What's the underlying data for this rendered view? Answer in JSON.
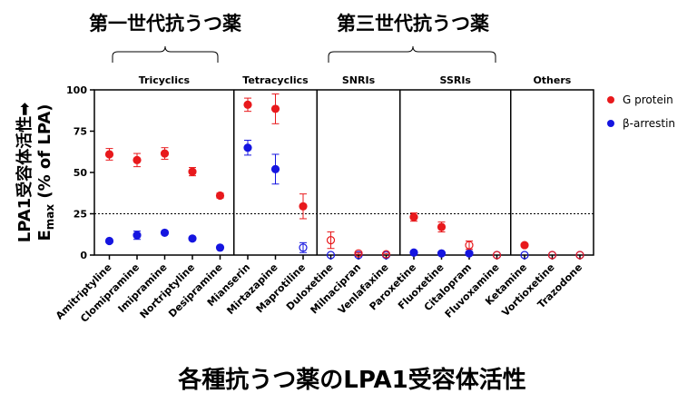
{
  "generation_labels": [
    "第一世代抗うつ薬",
    "第三世代抗うつ薬"
  ],
  "caption": "各種抗うつ薬のLPA1受容体活性",
  "ylabel": {
    "line1": "LPA1受容体活性➡",
    "line2_main": "E",
    "line2_sub": "max",
    "line2_rest": " (% of LPA)"
  },
  "colors": {
    "g_protein": "#e8191c",
    "beta_arrestin": "#1515e0"
  },
  "chart_data": {
    "type": "scatter",
    "categories": [
      "Amitriptyline",
      "Clomipramine",
      "Imipramine",
      "Nortriptyline",
      "Desipramine",
      "Mianserin",
      "Mirtazapine",
      "Maprotiline",
      "Duloxetine",
      "Milnacipran",
      "Venlafaxine",
      "Paroxetine",
      "Fluoxetine",
      "Citalopram",
      "Fluvoxamine",
      "Ketamine",
      "Vortioxetine",
      "Trazodone"
    ],
    "groups": [
      {
        "name": "Tricyclics",
        "start": 0,
        "end": 4
      },
      {
        "name": "Tetracyclics",
        "start": 5,
        "end": 7
      },
      {
        "name": "SNRIs",
        "start": 8,
        "end": 10
      },
      {
        "name": "SSRIs",
        "start": 11,
        "end": 14
      },
      {
        "name": "Others",
        "start": 15,
        "end": 17
      }
    ],
    "series": [
      {
        "name": "G protein",
        "color": "#e8191c",
        "values": [
          61,
          57.5,
          61.5,
          50.5,
          36,
          91,
          88.5,
          29.5,
          9,
          1,
          0.5,
          23,
          17,
          6,
          0,
          6,
          0,
          0
        ],
        "errors": [
          3.5,
          4,
          3.5,
          2.5,
          1.5,
          4,
          9,
          7.5,
          5,
          0.5,
          0.5,
          2.5,
          3,
          2.5,
          0,
          1,
          0,
          0
        ],
        "filled": [
          true,
          true,
          true,
          true,
          true,
          true,
          true,
          true,
          false,
          false,
          false,
          true,
          true,
          false,
          false,
          true,
          false,
          false
        ]
      },
      {
        "name": "β-arrestin",
        "color": "#1515e0",
        "values": [
          8.5,
          12,
          13.5,
          10,
          4.5,
          65,
          52,
          4.5,
          0,
          0,
          0,
          1.5,
          1,
          1,
          0,
          0,
          0,
          0
        ],
        "errors": [
          1,
          2.5,
          1,
          1,
          0.5,
          4.5,
          9,
          3,
          0,
          0,
          0,
          0.5,
          0.5,
          0.5,
          0,
          0,
          0,
          0
        ],
        "filled": [
          true,
          true,
          true,
          true,
          true,
          true,
          true,
          false,
          false,
          false,
          false,
          true,
          true,
          true,
          false,
          false,
          false,
          false
        ]
      }
    ],
    "y_ticks": [
      "0",
      "25",
      "50",
      "75",
      "100"
    ],
    "ylim": [
      0,
      100
    ],
    "reference_line": 25,
    "legend_position": "right"
  }
}
